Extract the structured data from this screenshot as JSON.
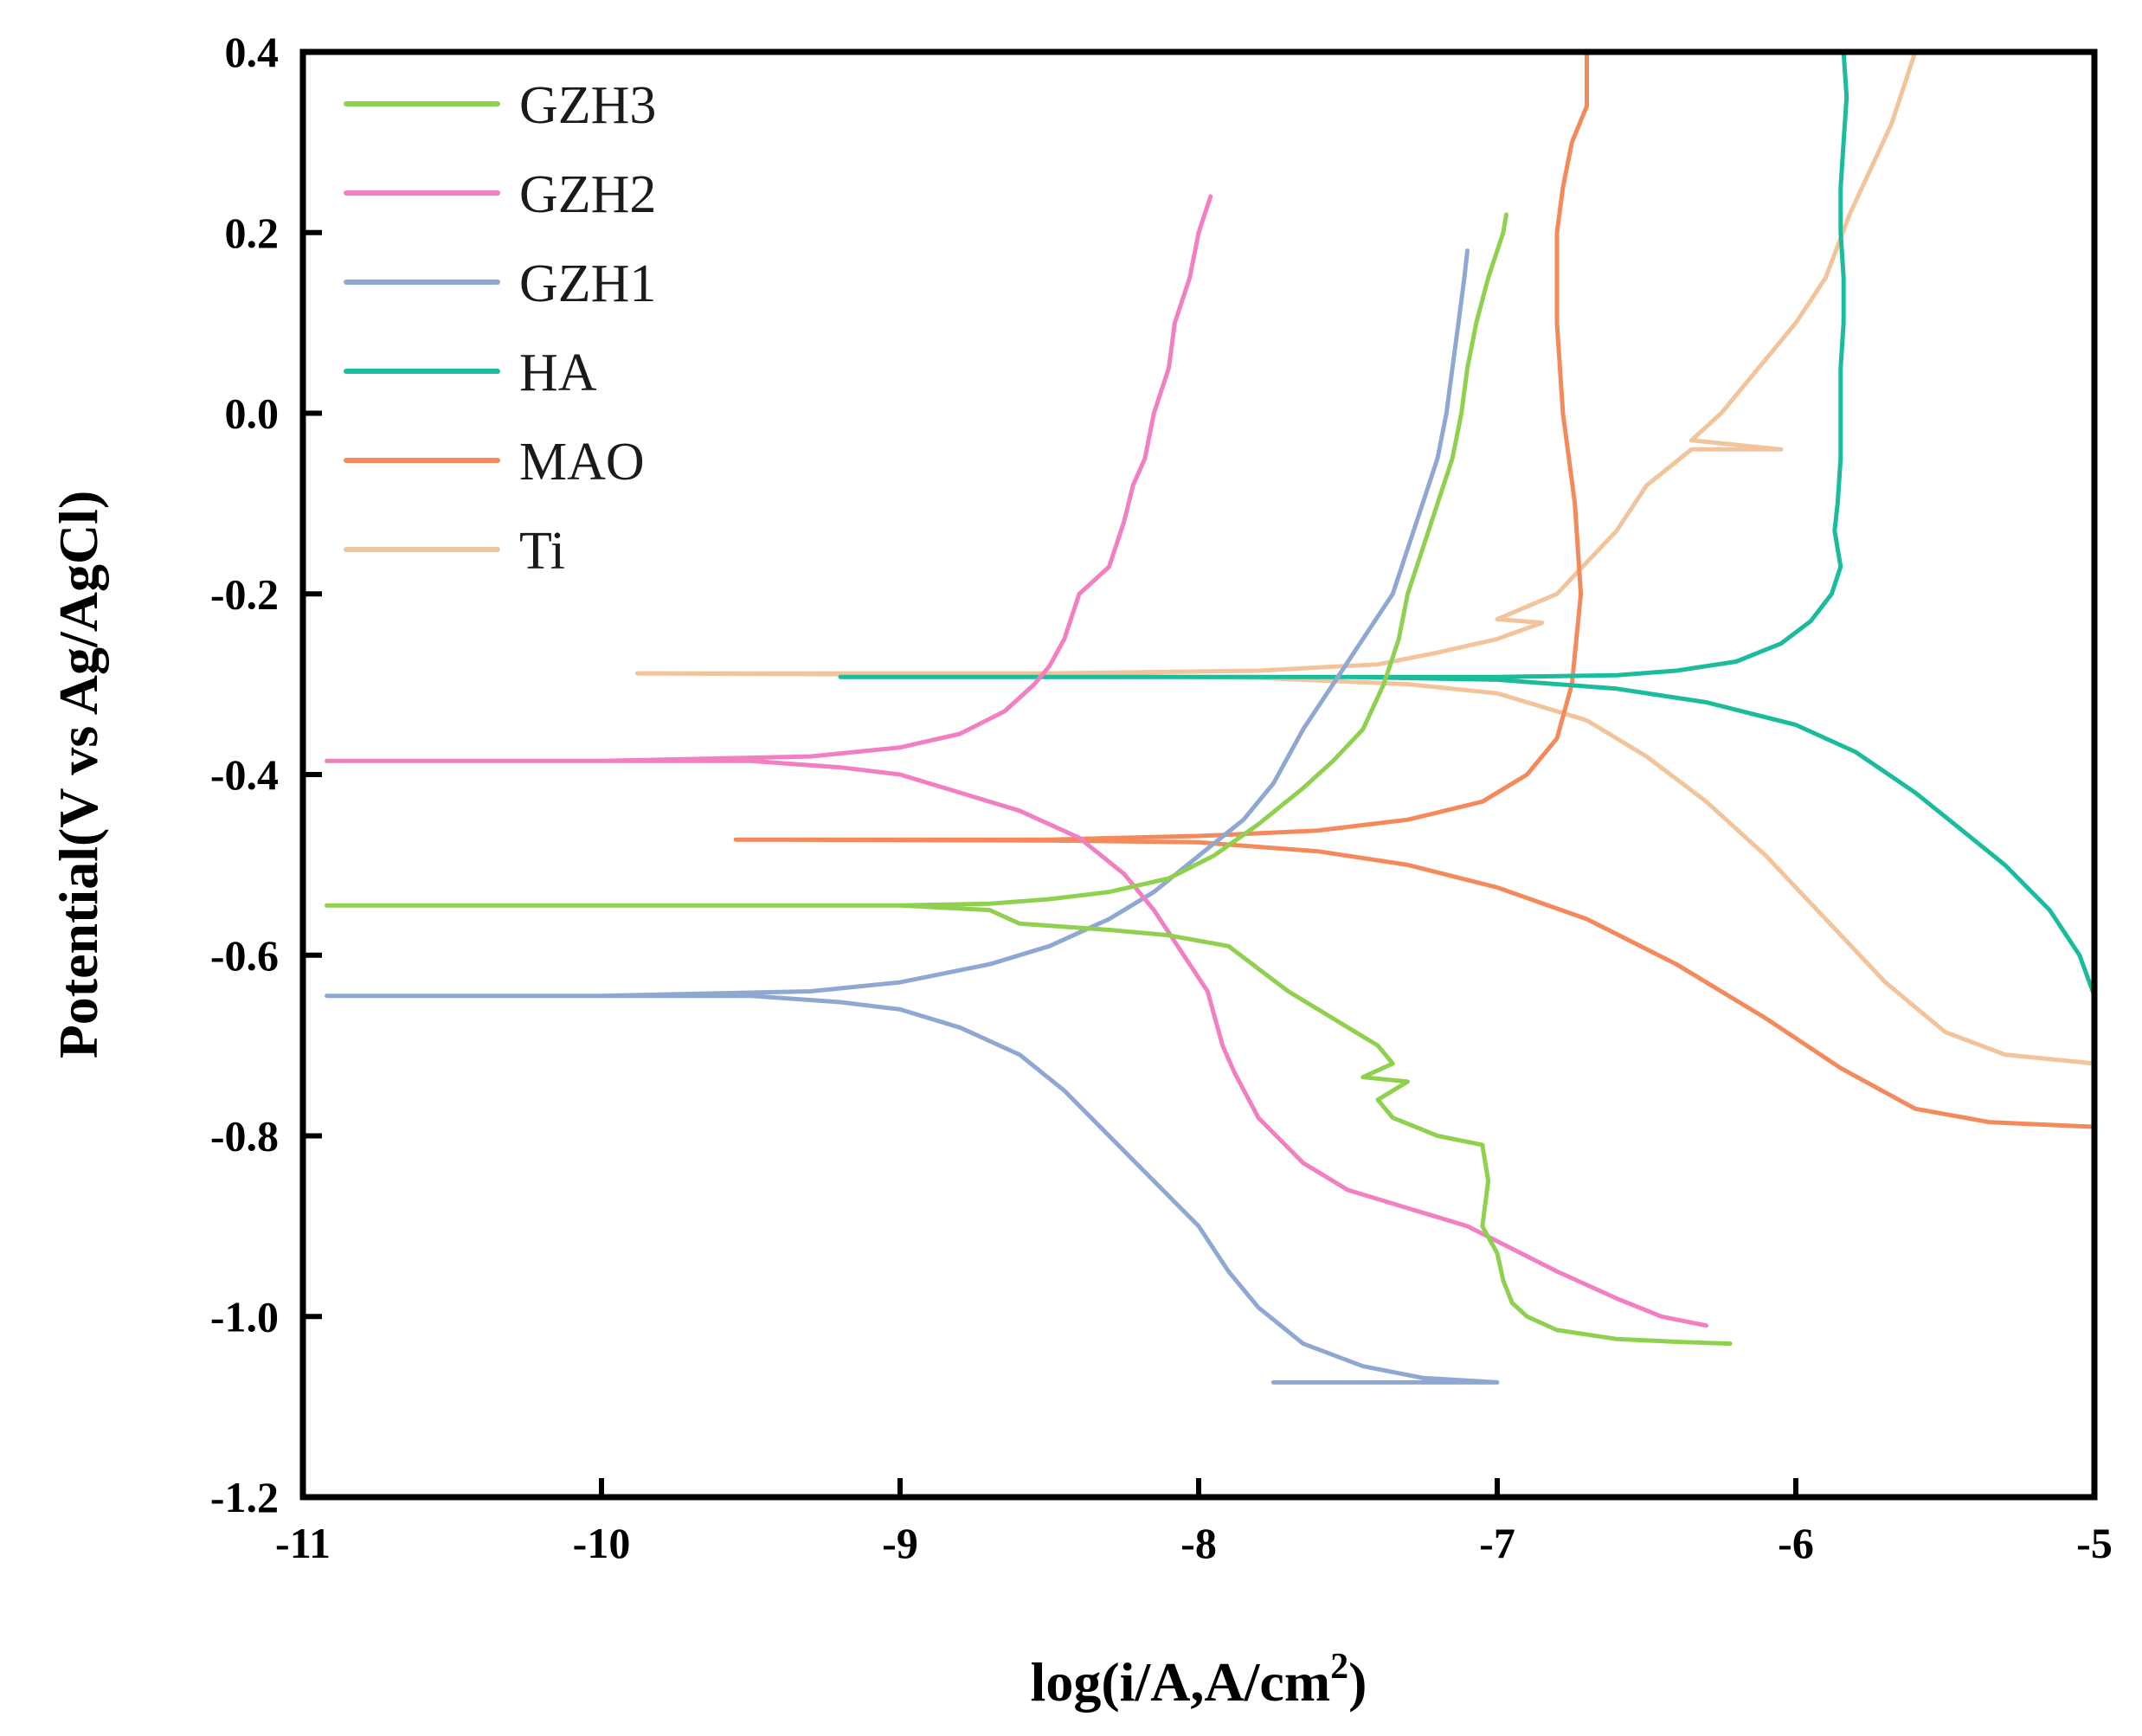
{
  "chart_data": {
    "type": "line",
    "title": "",
    "xlabel": "log(i/A,A/cm",
    "xlabel_superscript": "2",
    "xlabel_suffix": ")",
    "ylabel": "Potential(V vs Ag/AgCl)",
    "xlim": [
      -11,
      -5
    ],
    "ylim": [
      -1.2,
      0.4
    ],
    "x_ticks": [
      -11,
      -10,
      -9,
      -8,
      -7,
      -6,
      -5
    ],
    "x_tick_labels": [
      "-11",
      "-10",
      "-9",
      "-8",
      "-7",
      "-6",
      "-5"
    ],
    "y_ticks": [
      -1.2,
      -1.0,
      -0.8,
      -0.6,
      -0.4,
      -0.2,
      0.0,
      0.2,
      0.4
    ],
    "y_tick_labels": [
      "-1.2",
      "-1.0",
      "-0.8",
      "-0.6",
      "-0.4",
      "-0.2",
      "0.0",
      "0.2",
      "0.4"
    ],
    "grid": false,
    "legend_position": "top-left",
    "series": [
      {
        "name": "GZH3",
        "color": "#8fd14f",
        "points": [
          [
            -10.92,
            -0.545
          ],
          [
            -10.0,
            -0.545
          ],
          [
            -9.0,
            -0.545
          ],
          [
            -8.7,
            -0.543
          ],
          [
            -8.5,
            -0.538
          ],
          [
            -8.3,
            -0.53
          ],
          [
            -8.1,
            -0.515
          ],
          [
            -7.95,
            -0.49
          ],
          [
            -7.8,
            -0.455
          ],
          [
            -7.65,
            -0.415
          ],
          [
            -7.55,
            -0.385
          ],
          [
            -7.45,
            -0.35
          ],
          [
            -7.38,
            -0.3
          ],
          [
            -7.33,
            -0.25
          ],
          [
            -7.3,
            -0.2
          ],
          [
            -7.25,
            -0.15
          ],
          [
            -7.2,
            -0.1
          ],
          [
            -7.15,
            -0.05
          ],
          [
            -7.12,
            0.0
          ],
          [
            -7.1,
            0.05
          ],
          [
            -7.07,
            0.1
          ],
          [
            -7.03,
            0.15
          ],
          [
            -6.98,
            0.2
          ],
          [
            -6.97,
            0.22
          ],
          [
            null,
            null
          ],
          [
            -10.92,
            -0.545
          ],
          [
            -9.0,
            -0.545
          ],
          [
            -8.7,
            -0.55
          ],
          [
            -8.6,
            -0.565
          ],
          [
            -8.3,
            -0.572
          ],
          [
            -8.1,
            -0.578
          ],
          [
            -7.9,
            -0.59
          ],
          [
            -7.8,
            -0.615
          ],
          [
            -7.7,
            -0.64
          ],
          [
            -7.6,
            -0.66
          ],
          [
            -7.5,
            -0.68
          ],
          [
            -7.4,
            -0.7
          ],
          [
            -7.35,
            -0.72
          ],
          [
            -7.45,
            -0.735
          ],
          [
            -7.3,
            -0.74
          ],
          [
            -7.4,
            -0.76
          ],
          [
            -7.35,
            -0.78
          ],
          [
            -7.2,
            -0.8
          ],
          [
            -7.05,
            -0.81
          ],
          [
            -7.03,
            -0.85
          ],
          [
            -7.05,
            -0.9
          ],
          [
            -7.0,
            -0.93
          ],
          [
            -6.98,
            -0.96
          ],
          [
            -6.95,
            -0.985
          ],
          [
            -6.9,
            -1.0
          ],
          [
            -6.8,
            -1.015
          ],
          [
            -6.6,
            -1.025
          ],
          [
            -6.4,
            -1.028
          ],
          [
            -6.22,
            -1.03
          ]
        ]
      },
      {
        "name": "GZH2",
        "color": "#f27fc2",
        "points": [
          [
            -10.92,
            -0.385
          ],
          [
            -10.0,
            -0.385
          ],
          [
            -9.3,
            -0.38
          ],
          [
            -9.0,
            -0.37
          ],
          [
            -8.8,
            -0.355
          ],
          [
            -8.65,
            -0.33
          ],
          [
            -8.55,
            -0.3
          ],
          [
            -8.5,
            -0.28
          ],
          [
            -8.45,
            -0.25
          ],
          [
            -8.4,
            -0.2
          ],
          [
            -8.3,
            -0.17
          ],
          [
            -8.25,
            -0.12
          ],
          [
            -8.22,
            -0.08
          ],
          [
            -8.18,
            -0.05
          ],
          [
            -8.15,
            0.0
          ],
          [
            -8.1,
            0.05
          ],
          [
            -8.08,
            0.1
          ],
          [
            -8.03,
            0.15
          ],
          [
            -8.0,
            0.2
          ],
          [
            -7.98,
            0.22
          ],
          [
            -7.96,
            0.24
          ],
          [
            null,
            null
          ],
          [
            -10.92,
            -0.385
          ],
          [
            -9.5,
            -0.385
          ],
          [
            -9.2,
            -0.392
          ],
          [
            -9.0,
            -0.4
          ],
          [
            -8.8,
            -0.42
          ],
          [
            -8.6,
            -0.44
          ],
          [
            -8.4,
            -0.47
          ],
          [
            -8.25,
            -0.51
          ],
          [
            -8.15,
            -0.55
          ],
          [
            -8.05,
            -0.6
          ],
          [
            -7.97,
            -0.64
          ],
          [
            -7.92,
            -0.7
          ],
          [
            -7.88,
            -0.73
          ],
          [
            -7.8,
            -0.78
          ],
          [
            -7.65,
            -0.83
          ],
          [
            -7.5,
            -0.86
          ],
          [
            -7.3,
            -0.88
          ],
          [
            -7.1,
            -0.9
          ],
          [
            -6.95,
            -0.925
          ],
          [
            -6.8,
            -0.95
          ],
          [
            -6.6,
            -0.98
          ],
          [
            -6.45,
            -1.0
          ],
          [
            -6.3,
            -1.01
          ]
        ]
      },
      {
        "name": "GZH1",
        "color": "#8fa8d2",
        "points": [
          [
            -10.92,
            -0.645
          ],
          [
            -10.0,
            -0.645
          ],
          [
            -9.3,
            -0.64
          ],
          [
            -9.0,
            -0.63
          ],
          [
            -8.7,
            -0.61
          ],
          [
            -8.5,
            -0.59
          ],
          [
            -8.3,
            -0.56
          ],
          [
            -8.15,
            -0.53
          ],
          [
            -8.0,
            -0.49
          ],
          [
            -7.85,
            -0.45
          ],
          [
            -7.75,
            -0.41
          ],
          [
            -7.65,
            -0.35
          ],
          [
            -7.55,
            -0.3
          ],
          [
            -7.45,
            -0.25
          ],
          [
            -7.35,
            -0.2
          ],
          [
            -7.3,
            -0.15
          ],
          [
            -7.25,
            -0.1
          ],
          [
            -7.2,
            -0.05
          ],
          [
            -7.17,
            0.0
          ],
          [
            -7.15,
            0.05
          ],
          [
            -7.13,
            0.1
          ],
          [
            -7.11,
            0.15
          ],
          [
            -7.1,
            0.18
          ],
          [
            null,
            null
          ],
          [
            -10.92,
            -0.645
          ],
          [
            -9.5,
            -0.645
          ],
          [
            -9.2,
            -0.652
          ],
          [
            -9.0,
            -0.66
          ],
          [
            -8.8,
            -0.68
          ],
          [
            -8.6,
            -0.71
          ],
          [
            -8.45,
            -0.75
          ],
          [
            -8.3,
            -0.8
          ],
          [
            -8.15,
            -0.85
          ],
          [
            -8.0,
            -0.9
          ],
          [
            -7.9,
            -0.95
          ],
          [
            -7.8,
            -0.99
          ],
          [
            -7.65,
            -1.03
          ],
          [
            -7.45,
            -1.055
          ],
          [
            -7.25,
            -1.068
          ],
          [
            -7.0,
            -1.073
          ],
          [
            -7.75,
            -1.073
          ]
        ]
      },
      {
        "name": "HA",
        "color": "#1bbc9b",
        "points": [
          [
            -9.2,
            -0.292
          ],
          [
            -8.0,
            -0.292
          ],
          [
            -7.0,
            -0.292
          ],
          [
            -6.6,
            -0.29
          ],
          [
            -6.4,
            -0.285
          ],
          [
            -6.2,
            -0.275
          ],
          [
            -6.05,
            -0.255
          ],
          [
            -5.95,
            -0.23
          ],
          [
            -5.88,
            -0.2
          ],
          [
            -5.85,
            -0.17
          ],
          [
            -5.87,
            -0.13
          ],
          [
            -5.86,
            -0.1
          ],
          [
            -5.85,
            -0.05
          ],
          [
            -5.85,
            0.0
          ],
          [
            -5.85,
            0.05
          ],
          [
            -5.84,
            0.1
          ],
          [
            -5.84,
            0.15
          ],
          [
            -5.85,
            0.2
          ],
          [
            -5.85,
            0.25
          ],
          [
            -5.84,
            0.3
          ],
          [
            -5.83,
            0.35
          ],
          [
            -5.84,
            0.4
          ],
          [
            null,
            null
          ],
          [
            -9.2,
            -0.292
          ],
          [
            -7.5,
            -0.292
          ],
          [
            -7.0,
            -0.295
          ],
          [
            -6.6,
            -0.305
          ],
          [
            -6.3,
            -0.32
          ],
          [
            -6.0,
            -0.345
          ],
          [
            -5.8,
            -0.375
          ],
          [
            -5.6,
            -0.42
          ],
          [
            -5.45,
            -0.46
          ],
          [
            -5.3,
            -0.5
          ],
          [
            -5.15,
            -0.55
          ],
          [
            -5.05,
            -0.6
          ],
          [
            -5.0,
            -0.645
          ]
        ]
      },
      {
        "name": "MAO",
        "color": "#f4895c",
        "points": [
          [
            -9.55,
            -0.472
          ],
          [
            -8.5,
            -0.472
          ],
          [
            -8.0,
            -0.468
          ],
          [
            -7.6,
            -0.462
          ],
          [
            -7.3,
            -0.45
          ],
          [
            -7.05,
            -0.43
          ],
          [
            -6.9,
            -0.4
          ],
          [
            -6.8,
            -0.36
          ],
          [
            -6.75,
            -0.3
          ],
          [
            -6.72,
            -0.2
          ],
          [
            -6.74,
            -0.1
          ],
          [
            -6.78,
            0.0
          ],
          [
            -6.8,
            0.1
          ],
          [
            -6.8,
            0.2
          ],
          [
            -6.78,
            0.25
          ],
          [
            -6.75,
            0.3
          ],
          [
            -6.7,
            0.34
          ],
          [
            -6.7,
            0.4
          ],
          [
            null,
            null
          ],
          [
            -9.55,
            -0.472
          ],
          [
            -8.5,
            -0.473
          ],
          [
            -8.0,
            -0.475
          ],
          [
            -7.6,
            -0.485
          ],
          [
            -7.3,
            -0.5
          ],
          [
            -7.0,
            -0.525
          ],
          [
            -6.7,
            -0.56
          ],
          [
            -6.4,
            -0.61
          ],
          [
            -6.1,
            -0.67
          ],
          [
            -5.85,
            -0.725
          ],
          [
            -5.6,
            -0.77
          ],
          [
            -5.35,
            -0.785
          ],
          [
            -5.0,
            -0.79
          ]
        ]
      },
      {
        "name": "Ti",
        "color": "#f2c49c",
        "points": [
          [
            -9.88,
            -0.288
          ],
          [
            -8.5,
            -0.288
          ],
          [
            -7.8,
            -0.285
          ],
          [
            -7.4,
            -0.278
          ],
          [
            -7.2,
            -0.265
          ],
          [
            -7.0,
            -0.25
          ],
          [
            -6.85,
            -0.232
          ],
          [
            -7.0,
            -0.228
          ],
          [
            -6.8,
            -0.2
          ],
          [
            -6.6,
            -0.13
          ],
          [
            -6.5,
            -0.08
          ],
          [
            -6.35,
            -0.04
          ],
          [
            -6.05,
            -0.04
          ],
          [
            -6.35,
            -0.03
          ],
          [
            -6.25,
            0.0
          ],
          [
            -6.1,
            0.06
          ],
          [
            -6.0,
            0.1
          ],
          [
            -5.9,
            0.15
          ],
          [
            -5.82,
            0.22
          ],
          [
            -5.75,
            0.27
          ],
          [
            -5.68,
            0.32
          ],
          [
            -5.63,
            0.37
          ],
          [
            -5.6,
            0.4
          ],
          [
            null,
            null
          ],
          [
            -9.88,
            -0.288
          ],
          [
            -8.5,
            -0.29
          ],
          [
            -7.8,
            -0.293
          ],
          [
            -7.3,
            -0.3
          ],
          [
            -7.0,
            -0.31
          ],
          [
            -6.7,
            -0.34
          ],
          [
            -6.5,
            -0.38
          ],
          [
            -6.3,
            -0.43
          ],
          [
            -6.1,
            -0.49
          ],
          [
            -5.9,
            -0.56
          ],
          [
            -5.7,
            -0.63
          ],
          [
            -5.5,
            -0.685
          ],
          [
            -5.3,
            -0.71
          ],
          [
            -5.0,
            -0.72
          ]
        ]
      }
    ]
  }
}
